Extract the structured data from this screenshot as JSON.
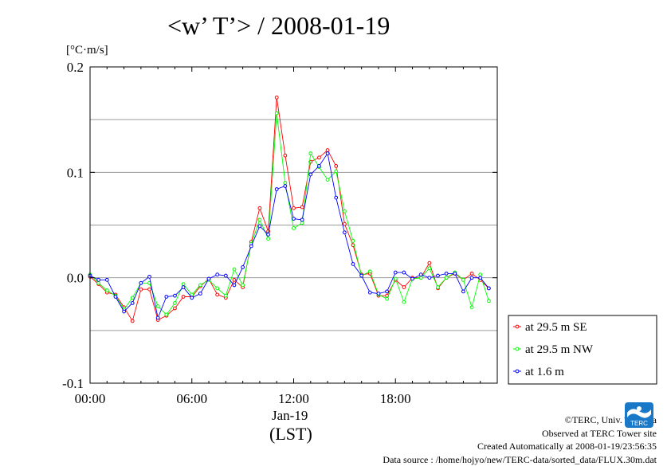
{
  "title": "<w’ T’> / 2008-01-19",
  "y_unit": "[°C·m/s]",
  "x_date_label": "Jan-19",
  "x_time_label": "(LST)",
  "footer": {
    "copyright": "©TERC, Univ. Tsukuba",
    "observed": "Observed at TERC Tower site",
    "created": "Created Automatically at 2008-01-19/23:56:35",
    "source": "Data source : /home/hojyo/new/TERC-data/sorted_data/FLUX.30m.dat"
  },
  "logo_text": "TERC",
  "chart_data": {
    "type": "line",
    "title": "<w’ T’> / 2008-01-19",
    "xlabel": "(LST)",
    "ylabel": "[°C·m/s]",
    "xlim": [
      0,
      24
    ],
    "ylim": [
      -0.1,
      0.2
    ],
    "x_ticks": [
      {
        "value": 0,
        "label": "00:00"
      },
      {
        "value": 6,
        "label": "06:00"
      },
      {
        "value": 12,
        "label": "12:00"
      },
      {
        "value": 18,
        "label": "18:00"
      }
    ],
    "y_ticks": [
      {
        "value": -0.1,
        "label": "-0.1"
      },
      {
        "value": 0.0,
        "label": "0.0"
      },
      {
        "value": 0.1,
        "label": "0.1"
      },
      {
        "value": 0.2,
        "label": "0.2"
      }
    ],
    "grid_y": [
      -0.05,
      0.0,
      0.05,
      0.1,
      0.15
    ],
    "legend_position": "right, below plot top",
    "x": [
      0.0,
      0.5,
      1.0,
      1.5,
      2.0,
      2.5,
      3.0,
      3.5,
      4.0,
      4.5,
      5.0,
      5.5,
      6.0,
      6.5,
      7.0,
      7.5,
      8.0,
      8.5,
      9.0,
      9.5,
      10.0,
      10.5,
      11.0,
      11.5,
      12.0,
      12.5,
      13.0,
      13.5,
      14.0,
      14.5,
      15.0,
      15.5,
      16.0,
      16.5,
      17.0,
      17.5,
      18.0,
      18.5,
      19.0,
      19.5,
      20.0,
      20.5,
      21.0,
      21.5,
      22.0,
      22.5,
      23.0,
      23.5
    ],
    "series": [
      {
        "name": "at 29.5 m SE",
        "color": "#ff0000",
        "values": [
          0.001,
          -0.006,
          -0.014,
          -0.016,
          -0.028,
          -0.041,
          -0.011,
          -0.011,
          -0.04,
          -0.036,
          -0.029,
          -0.018,
          -0.018,
          -0.008,
          -0.001,
          -0.016,
          -0.019,
          -0.002,
          -0.009,
          0.034,
          0.066,
          0.044,
          0.171,
          0.116,
          0.066,
          0.067,
          0.11,
          0.114,
          0.121,
          0.106,
          0.051,
          0.031,
          0.003,
          0.004,
          -0.017,
          -0.017,
          -0.002,
          -0.009,
          0.0,
          0.0,
          0.014,
          -0.01,
          0.0,
          0.004,
          -0.002,
          0.004,
          -0.002,
          -0.01
        ]
      },
      {
        "name": "at 29.5 m NW",
        "color": "#00ff00",
        "values": [
          0.003,
          -0.005,
          -0.012,
          -0.017,
          -0.03,
          -0.019,
          -0.005,
          -0.005,
          -0.027,
          -0.035,
          -0.024,
          -0.006,
          -0.016,
          -0.007,
          -0.002,
          -0.01,
          -0.017,
          0.008,
          -0.007,
          0.032,
          0.055,
          0.037,
          0.156,
          0.09,
          0.047,
          0.052,
          0.118,
          0.105,
          0.093,
          0.101,
          0.063,
          0.035,
          0.002,
          0.006,
          -0.016,
          -0.02,
          -0.001,
          -0.023,
          -0.001,
          0.0,
          0.009,
          -0.009,
          0.0,
          0.005,
          -0.002,
          -0.028,
          0.003,
          -0.022
        ]
      },
      {
        "name": "at 1.6 m",
        "color": "#0000ff",
        "values": [
          0.002,
          -0.002,
          -0.002,
          -0.018,
          -0.032,
          -0.024,
          -0.005,
          0.001,
          -0.038,
          -0.018,
          -0.017,
          -0.009,
          -0.019,
          -0.015,
          -0.001,
          0.003,
          0.002,
          -0.007,
          0.01,
          0.03,
          0.049,
          0.041,
          0.084,
          0.087,
          0.056,
          0.055,
          0.098,
          0.106,
          0.118,
          0.076,
          0.043,
          0.013,
          0.002,
          -0.014,
          -0.015,
          -0.013,
          0.005,
          0.005,
          -0.001,
          0.003,
          0.0,
          0.002,
          0.004,
          0.004,
          -0.013,
          0.0,
          0.0,
          -0.01
        ]
      }
    ]
  }
}
